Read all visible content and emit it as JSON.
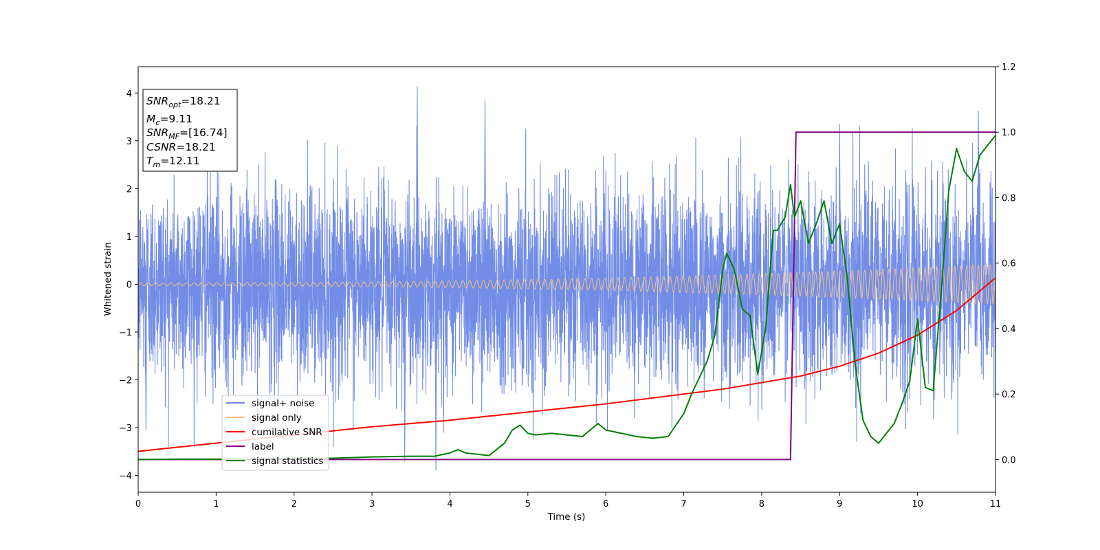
{
  "chart_data": {
    "type": "line",
    "xlabel": "Time (s)",
    "ylabel": "Whitened strain",
    "xlim": [
      0,
      11
    ],
    "ylim": [
      -4.35,
      4.55
    ],
    "y2lim": [
      -0.1,
      1.2
    ],
    "xticks": [
      "0",
      "1",
      "2",
      "3",
      "4",
      "5",
      "6",
      "7",
      "8",
      "9",
      "10",
      "11"
    ],
    "yticks": [
      "−4",
      "−3",
      "−2",
      "−1",
      "0",
      "1",
      "2",
      "3",
      "4"
    ],
    "y2ticks": [
      "0.0",
      "0.2",
      "0.4",
      "0.6",
      "0.8",
      "1.0",
      "1.2"
    ],
    "grid": false,
    "legend_position": "lower-left",
    "legend": [
      {
        "label": "signal+ noise",
        "color": "#6b87e6"
      },
      {
        "label": "signal only",
        "color": "#ffc277"
      },
      {
        "label": "cumilative SNR",
        "color": "#ff0000"
      },
      {
        "label": "label",
        "color": "#800080"
      },
      {
        "label": "signal statistics",
        "color": "#008000"
      }
    ],
    "stats_box": {
      "snr_opt": {
        "sym": "SNR",
        "sub": "opt",
        "value": "=18.21"
      },
      "mc": {
        "sym": "M",
        "sub": "c",
        "value": "=9.11"
      },
      "snr_mf": {
        "sym": "SNR",
        "sub": "MF",
        "value": "=[16.74]"
      },
      "csnr": {
        "sym": "CSNR",
        "value": "=18.21"
      },
      "tm": {
        "sym": "T",
        "sub": "m",
        "value": "=12.11"
      }
    },
    "series": [
      {
        "name": "signal+ noise",
        "axis": "left",
        "color": "#6b87e6",
        "description": "white noise, std ~1.0, peaks between -3.9 and 4.2 across 0-11 s",
        "noise_std": 1.0,
        "peaks": [
          [
            0.1,
            -3.05
          ],
          [
            3.58,
            4.15
          ],
          [
            3.82,
            -3.9
          ],
          [
            4.45,
            3.85
          ],
          [
            9.0,
            3.35
          ],
          [
            10.78,
            3.62
          ],
          [
            3.42,
            -3.7
          ]
        ]
      },
      {
        "name": "signal only",
        "axis": "left",
        "color": "#ffc277",
        "description": "chirp with amplitude growing from ~0.03 to ~0.42",
        "amplitude_start": 0.03,
        "amplitude_end": 0.42
      },
      {
        "name": "cumilative SNR",
        "axis": "right",
        "x": [
          0,
          1,
          2,
          3,
          4,
          5,
          6,
          7,
          7.5,
          8,
          8.5,
          9,
          9.5,
          10,
          10.5,
          11
        ],
        "y": [
          0.025,
          0.05,
          0.075,
          0.1,
          0.12,
          0.145,
          0.17,
          0.2,
          0.215,
          0.235,
          0.255,
          0.285,
          0.325,
          0.38,
          0.455,
          0.555
        ],
        "color": "#ff0000"
      },
      {
        "name": "label",
        "axis": "right",
        "x": [
          0,
          8.37,
          8.44,
          11
        ],
        "y": [
          0,
          0,
          1,
          1
        ],
        "color": "#800080"
      },
      {
        "name": "signal statistics",
        "axis": "right",
        "x": [
          0,
          0.5,
          1,
          1.5,
          2,
          2.5,
          3,
          3.5,
          3.8,
          4.0,
          4.1,
          4.2,
          4.5,
          4.7,
          4.8,
          4.9,
          5.0,
          5.1,
          5.3,
          5.5,
          5.7,
          5.8,
          5.9,
          6.0,
          6.2,
          6.4,
          6.6,
          6.8,
          7.0,
          7.1,
          7.2,
          7.3,
          7.4,
          7.5,
          7.55,
          7.65,
          7.75,
          7.85,
          7.95,
          8.05,
          8.15,
          8.2,
          8.3,
          8.37,
          8.42,
          8.5,
          8.6,
          8.7,
          8.8,
          8.9,
          9.0,
          9.1,
          9.2,
          9.3,
          9.4,
          9.5,
          9.6,
          9.7,
          9.8,
          9.9,
          10.0,
          10.1,
          10.2,
          10.3,
          10.4,
          10.5,
          10.6,
          10.7,
          10.8,
          10.9,
          11.0
        ],
        "y": [
          0.0,
          0.001,
          0.001,
          0.002,
          0.004,
          0.004,
          0.008,
          0.01,
          0.01,
          0.02,
          0.03,
          0.02,
          0.012,
          0.05,
          0.09,
          0.105,
          0.08,
          0.075,
          0.08,
          0.075,
          0.07,
          0.09,
          0.11,
          0.09,
          0.08,
          0.07,
          0.065,
          0.07,
          0.14,
          0.2,
          0.25,
          0.3,
          0.38,
          0.58,
          0.63,
          0.58,
          0.46,
          0.44,
          0.26,
          0.4,
          0.7,
          0.7,
          0.74,
          0.84,
          0.74,
          0.79,
          0.66,
          0.72,
          0.79,
          0.66,
          0.72,
          0.55,
          0.29,
          0.12,
          0.07,
          0.05,
          0.08,
          0.11,
          0.17,
          0.24,
          0.43,
          0.22,
          0.21,
          0.5,
          0.82,
          0.95,
          0.88,
          0.85,
          0.93,
          0.96,
          0.99
        ],
        "color": "#008000"
      }
    ]
  }
}
